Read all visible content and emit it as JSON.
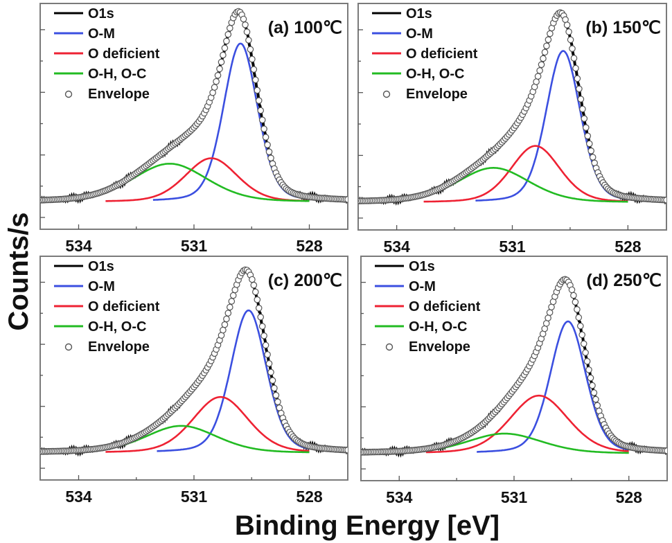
{
  "chart_data": {
    "type": "line",
    "figure_xlabel": "Binding Energy [eV]",
    "figure_ylabel": "Counts/s",
    "x_unit": "eV",
    "y_unit": "normalized counts (a.u.)",
    "xlim": [
      535.0,
      527.0
    ],
    "x_reversed": true,
    "ylim": [
      -0.15,
      1.09
    ],
    "xticks": [
      534,
      531,
      528
    ],
    "xticks_minor": [
      532.5,
      529.5
    ],
    "xtick_labels": [
      "534",
      "531",
      "528"
    ],
    "yticks": [
      -0.085,
      0.087,
      0.258,
      0.43,
      0.602,
      0.774,
      0.946
    ],
    "ytick_labels_shown": false,
    "grid": false,
    "legend_placement": "top-left",
    "legend": [
      {
        "key": "o1s",
        "label": "O1s",
        "style": "line",
        "color": "#000000"
      },
      {
        "key": "om",
        "label": "O-M",
        "style": "line",
        "color": "#3b4fe0"
      },
      {
        "key": "odef",
        "label": "O deficient",
        "style": "line",
        "color": "#ee2233"
      },
      {
        "key": "ohoc",
        "label": "O-H, O-C",
        "style": "line",
        "color": "#22bb22"
      },
      {
        "key": "envelope",
        "label": "Envelope",
        "style": "open-circle",
        "color": "#555555"
      }
    ],
    "panels": [
      {
        "id": "a",
        "title": "(a) 100℃",
        "components": [
          {
            "key": "om",
            "name": "O-M",
            "center_eV": 529.79,
            "height": 0.87,
            "fwhm_eV": 1.05
          },
          {
            "key": "odef",
            "name": "O deficient",
            "center_eV": 530.55,
            "height": 0.24,
            "fwhm_eV": 1.6
          },
          {
            "key": "ohoc",
            "name": "O-H, O-C",
            "center_eV": 531.63,
            "height": 0.21,
            "fwhm_eV": 2.3
          }
        ],
        "envelope_peak": {
          "x_eV": 529.9,
          "y": 1.0
        }
      },
      {
        "id": "b",
        "title": "(b) 150℃",
        "components": [
          {
            "key": "om",
            "name": "O-M",
            "center_eV": 529.68,
            "height": 0.83,
            "fwhm_eV": 1.05
          },
          {
            "key": "odef",
            "name": "O deficient",
            "center_eV": 530.4,
            "height": 0.31,
            "fwhm_eV": 1.5
          },
          {
            "key": "ohoc",
            "name": "O-H, O-C",
            "center_eV": 531.49,
            "height": 0.19,
            "fwhm_eV": 2.2
          }
        ],
        "envelope_peak": {
          "x_eV": 529.78,
          "y": 1.0
        }
      },
      {
        "id": "c",
        "title": "(c) 200℃",
        "components": [
          {
            "key": "om",
            "name": "O-M",
            "center_eV": 529.58,
            "height": 0.79,
            "fwhm_eV": 1.1
          },
          {
            "key": "odef",
            "name": "O deficient",
            "center_eV": 530.31,
            "height": 0.31,
            "fwhm_eV": 1.7
          },
          {
            "key": "ohoc",
            "name": "O-H, O-C",
            "center_eV": 531.33,
            "height": 0.15,
            "fwhm_eV": 2.2
          }
        ],
        "envelope_peak": {
          "x_eV": 529.68,
          "y": 0.99
        }
      },
      {
        "id": "d",
        "title": "(d) 250℃",
        "components": [
          {
            "key": "om",
            "name": "O-M",
            "center_eV": 529.59,
            "height": 0.73,
            "fwhm_eV": 1.1
          },
          {
            "key": "odef",
            "name": "O deficient",
            "center_eV": 530.35,
            "height": 0.32,
            "fwhm_eV": 1.8
          },
          {
            "key": "ohoc",
            "name": "O-H, O-C",
            "center_eV": 531.25,
            "height": 0.11,
            "fwhm_eV": 2.3
          }
        ],
        "envelope_peak": {
          "x_eV": 529.7,
          "y": 0.98
        }
      }
    ]
  }
}
